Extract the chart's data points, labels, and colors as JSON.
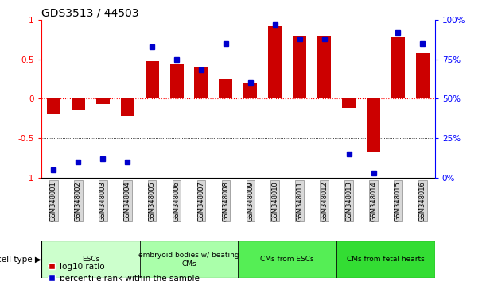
{
  "title": "GDS3513 / 44503",
  "samples": [
    "GSM348001",
    "GSM348002",
    "GSM348003",
    "GSM348004",
    "GSM348005",
    "GSM348006",
    "GSM348007",
    "GSM348008",
    "GSM348009",
    "GSM348010",
    "GSM348011",
    "GSM348012",
    "GSM348013",
    "GSM348014",
    "GSM348015",
    "GSM348016"
  ],
  "log10_ratio": [
    -0.2,
    -0.15,
    -0.07,
    -0.22,
    0.48,
    0.44,
    0.4,
    0.25,
    0.2,
    0.92,
    0.8,
    0.8,
    -0.12,
    -0.68,
    0.78,
    0.58
  ],
  "percentile_rank": [
    5,
    10,
    12,
    10,
    83,
    75,
    68,
    85,
    60,
    97,
    88,
    88,
    15,
    3,
    92,
    85
  ],
  "bar_color": "#cc0000",
  "dot_color": "#0000cc",
  "cell_types": [
    {
      "label": "ESCs",
      "start": 0,
      "end": 3,
      "color": "#ccffcc"
    },
    {
      "label": "embryoid bodies w/ beating\nCMs",
      "start": 4,
      "end": 7,
      "color": "#aaffaa"
    },
    {
      "label": "CMs from ESCs",
      "start": 8,
      "end": 11,
      "color": "#55ee55"
    },
    {
      "label": "CMs from fetal hearts",
      "start": 12,
      "end": 15,
      "color": "#33dd33"
    }
  ],
  "ylim_left": [
    -1.0,
    1.0
  ],
  "ylim_right": [
    0,
    100
  ],
  "yticks_left": [
    -1,
    -0.5,
    0,
    0.5,
    1
  ],
  "ytick_labels_left": [
    "-1",
    "-0.5",
    "0",
    "0.5",
    "1"
  ],
  "yticks_right": [
    0,
    25,
    50,
    75,
    100
  ],
  "ytick_labels_right": [
    "0%",
    "25%",
    "50%",
    "75%",
    "100%"
  ],
  "background_color": "#ffffff"
}
